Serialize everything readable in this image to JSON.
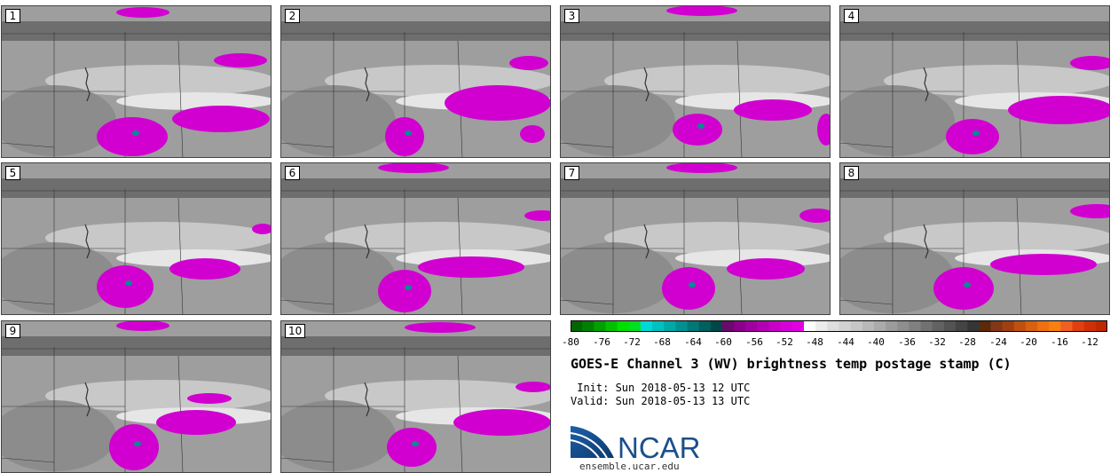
{
  "panels": [
    {
      "label": "1"
    },
    {
      "label": "2"
    },
    {
      "label": "3"
    },
    {
      "label": "4"
    },
    {
      "label": "5"
    },
    {
      "label": "6"
    },
    {
      "label": "7"
    },
    {
      "label": "8"
    },
    {
      "label": "9"
    },
    {
      "label": "10"
    }
  ],
  "colorbar": {
    "ticks": [
      "-80",
      "-76",
      "-72",
      "-68",
      "-64",
      "-60",
      "-56",
      "-52",
      "-48",
      "-44",
      "-40",
      "-36",
      "-32",
      "-28",
      "-24",
      "-20",
      "-16",
      "-12"
    ],
    "colors": [
      "#006600",
      "#008000",
      "#00a000",
      "#00c000",
      "#00e000",
      "#00e020",
      "#00d8d8",
      "#00c0c0",
      "#00a8a8",
      "#009090",
      "#007878",
      "#006060",
      "#004848",
      "#6a0a6a",
      "#8a008a",
      "#a000a0",
      "#b400b4",
      "#c800c8",
      "#d800d8",
      "#e000e0",
      "#fdfdfd",
      "#ececec",
      "#dedede",
      "#d2d2d2",
      "#c6c6c6",
      "#b8b8b8",
      "#aaaaaa",
      "#9c9c9c",
      "#8e8e8e",
      "#808080",
      "#717171",
      "#626262",
      "#535353",
      "#444444",
      "#353535",
      "#5a2a0a",
      "#803818",
      "#a04010",
      "#c05010",
      "#d86010",
      "#f07010",
      "#f88010",
      "#f06020",
      "#e04010",
      "#d03008",
      "#c02800"
    ]
  },
  "title": "GOES-E Channel 3 (WV) brightness temp postage stamp (C)",
  "init": " Init: Sun 2018-05-13 12 UTC",
  "valid": "Valid: Sun 2018-05-13 13 UTC",
  "logo": {
    "text": "NCAR",
    "url": "ensemble.ucar.edu",
    "color": "#1a4f8c"
  }
}
